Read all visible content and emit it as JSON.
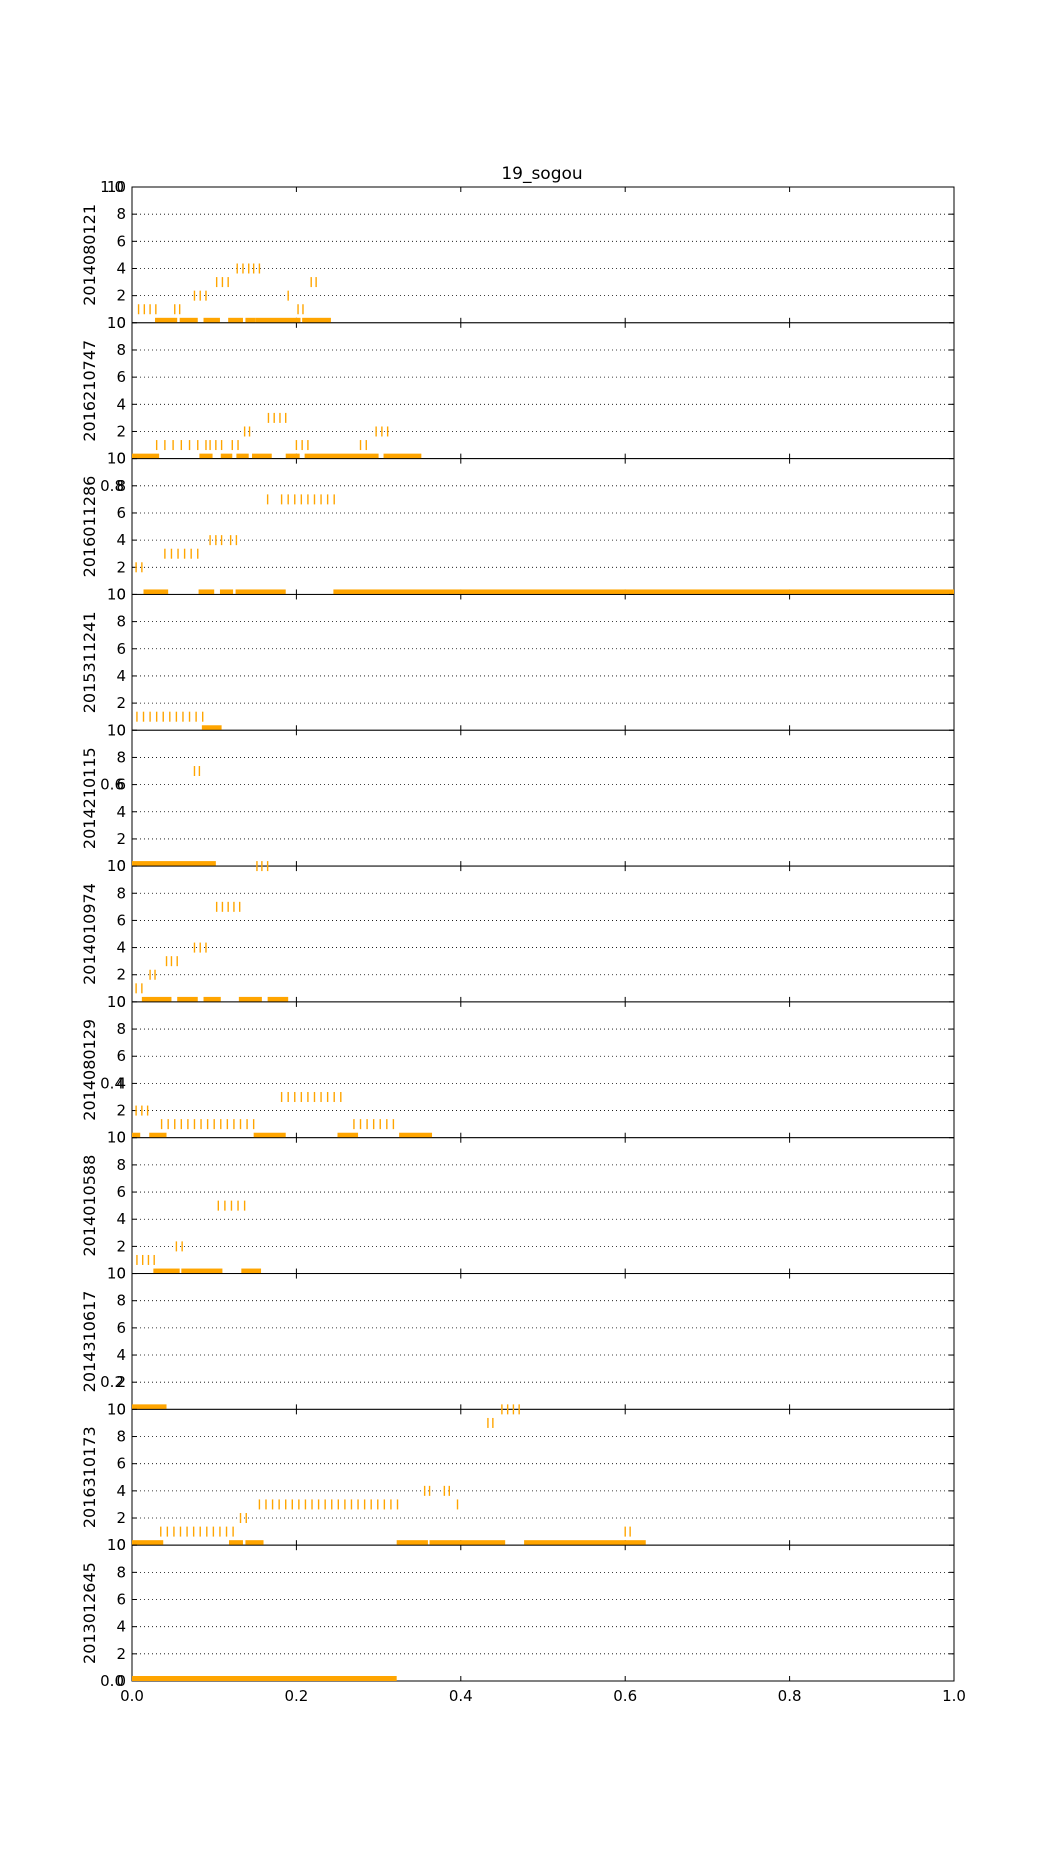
{
  "chart_data": {
    "type": "scatter",
    "title": "19_sogou",
    "mark_color": "#ffa500",
    "grid": "y-dotted",
    "xlim": [
      0,
      1.0
    ],
    "x_ticks": [
      0.0,
      0.2,
      0.4,
      0.6,
      0.8,
      1.0
    ],
    "x_tick_labels": [
      "0.0",
      "0.2",
      "0.4",
      "0.6",
      "0.8",
      "1.0"
    ],
    "ylim": [
      0,
      10
    ],
    "y_ticks": [
      0,
      2,
      4,
      6,
      8,
      10
    ],
    "y_tick_labels": [
      "0",
      "2",
      "4",
      "6",
      "8",
      "10"
    ],
    "background_ticks": [
      {
        "y": 10,
        "label": "1.0"
      },
      {
        "y": 8,
        "label": "0.8"
      },
      {
        "y": 6,
        "label": "0.6"
      },
      {
        "y": 4,
        "label": "0.4"
      },
      {
        "y": 2,
        "label": "0.2"
      },
      {
        "y": 0,
        "label": "0.0"
      }
    ],
    "panels": [
      {
        "name": "2014080121",
        "ticks": [
          {
            "y": 1,
            "x": [
              0.008,
              0.015,
              0.022,
              0.029,
              0.052,
              0.058,
              0.202,
              0.208
            ]
          },
          {
            "y": 2,
            "x": [
              0.076,
              0.083,
              0.09,
              0.19
            ]
          },
          {
            "y": 3,
            "x": [
              0.103,
              0.11,
              0.117,
              0.218,
              0.224
            ]
          },
          {
            "y": 4,
            "x": [
              0.128,
              0.135,
              0.142,
              0.148,
              0.155
            ]
          }
        ],
        "bars": [
          [
            0.028,
            0.055
          ],
          [
            0.058,
            0.08
          ],
          [
            0.087,
            0.107
          ],
          [
            0.117,
            0.135
          ],
          [
            0.138,
            0.15
          ],
          [
            0.15,
            0.205
          ],
          [
            0.207,
            0.242
          ]
        ]
      },
      {
        "name": "2016210747",
        "ticks": [
          {
            "y": 1,
            "x": [
              0.03,
              0.04,
              0.05,
              0.06,
              0.07,
              0.08,
              0.09,
              0.095,
              0.102,
              0.109,
              0.122,
              0.129,
              0.2,
              0.207,
              0.214,
              0.278,
              0.285
            ]
          },
          {
            "y": 2,
            "x": [
              0.137,
              0.143,
              0.297,
              0.304,
              0.311
            ]
          },
          {
            "y": 3,
            "x": [
              0.166,
              0.173,
              0.18,
              0.187
            ]
          }
        ],
        "bars": [
          [
            0.0,
            0.033
          ],
          [
            0.082,
            0.098
          ],
          [
            0.108,
            0.122
          ],
          [
            0.127,
            0.142
          ],
          [
            0.146,
            0.17
          ],
          [
            0.187,
            0.204
          ],
          [
            0.21,
            0.3
          ],
          [
            0.306,
            0.352
          ]
        ]
      },
      {
        "name": "2016011286",
        "ticks": [
          {
            "y": 2,
            "x": [
              0.005,
              0.012
            ]
          },
          {
            "y": 3,
            "x": [
              0.04,
              0.048,
              0.056,
              0.064,
              0.072,
              0.08
            ]
          },
          {
            "y": 4,
            "x": [
              0.095,
              0.102,
              0.109,
              0.12,
              0.127
            ]
          },
          {
            "y": 7,
            "x": [
              0.165,
              0.182,
              0.19,
              0.198,
              0.206,
              0.214,
              0.222,
              0.23,
              0.238,
              0.246
            ]
          }
        ],
        "bars": [
          [
            0.014,
            0.044
          ],
          [
            0.081,
            0.1
          ],
          [
            0.107,
            0.123
          ],
          [
            0.126,
            0.187
          ],
          [
            0.245,
            1.0
          ]
        ]
      },
      {
        "name": "2015311241",
        "ticks": [
          {
            "y": 1,
            "x": [
              0.006,
              0.014,
              0.022,
              0.03,
              0.038,
              0.046,
              0.054,
              0.062,
              0.07,
              0.078,
              0.086
            ]
          }
        ],
        "bars": [
          [
            0.085,
            0.109
          ]
        ]
      },
      {
        "name": "2014210115",
        "ticks": [
          {
            "y": 7,
            "x": [
              0.076,
              0.082
            ]
          }
        ],
        "bars": [
          [
            0.0,
            0.102
          ]
        ]
      },
      {
        "name": "2014010974",
        "ticks": [
          {
            "y": 1,
            "x": [
              0.005,
              0.012
            ]
          },
          {
            "y": 2,
            "x": [
              0.022,
              0.028
            ]
          },
          {
            "y": 3,
            "x": [
              0.042,
              0.048,
              0.055
            ]
          },
          {
            "y": 4,
            "x": [
              0.076,
              0.083,
              0.09
            ]
          },
          {
            "y": 7,
            "x": [
              0.103,
              0.11,
              0.117,
              0.124,
              0.131
            ]
          },
          {
            "y": 10,
            "x": [
              0.152,
              0.158,
              0.165
            ]
          }
        ],
        "bars": [
          [
            0.012,
            0.048
          ],
          [
            0.055,
            0.08
          ],
          [
            0.087,
            0.108
          ],
          [
            0.13,
            0.158
          ],
          [
            0.165,
            0.19
          ]
        ]
      },
      {
        "name": "2014080129",
        "ticks": [
          {
            "y": 1,
            "x": [
              0.036,
              0.044,
              0.052,
              0.06,
              0.068,
              0.076,
              0.084,
              0.092,
              0.1,
              0.108,
              0.116,
              0.124,
              0.132,
              0.14,
              0.148,
              0.27,
              0.278,
              0.286,
              0.294,
              0.302,
              0.31,
              0.318
            ]
          },
          {
            "y": 2,
            "x": [
              0.005,
              0.012,
              0.019
            ]
          },
          {
            "y": 3,
            "x": [
              0.182,
              0.19,
              0.198,
              0.206,
              0.214,
              0.222,
              0.23,
              0.238,
              0.246,
              0.254
            ]
          }
        ],
        "bars": [
          [
            0.0,
            0.01
          ],
          [
            0.021,
            0.042
          ],
          [
            0.148,
            0.187
          ],
          [
            0.25,
            0.275
          ],
          [
            0.325,
            0.365
          ]
        ]
      },
      {
        "name": "2014010588",
        "ticks": [
          {
            "y": 1,
            "x": [
              0.006,
              0.013,
              0.02,
              0.027
            ]
          },
          {
            "y": 2,
            "x": [
              0.054,
              0.061
            ]
          },
          {
            "y": 5,
            "x": [
              0.105,
              0.113,
              0.121,
              0.129,
              0.137
            ]
          }
        ],
        "bars": [
          [
            0.026,
            0.058
          ],
          [
            0.06,
            0.11
          ],
          [
            0.133,
            0.157
          ]
        ]
      },
      {
        "name": "2014310617",
        "ticks": [],
        "bars": [
          [
            0.0,
            0.042
          ]
        ]
      },
      {
        "name": "2016310173",
        "ticks": [
          {
            "y": 1,
            "x": [
              0.035,
              0.043,
              0.051,
              0.059,
              0.067,
              0.075,
              0.083,
              0.091,
              0.099,
              0.107,
              0.115,
              0.123,
              0.6,
              0.606
            ]
          },
          {
            "y": 2,
            "x": [
              0.132,
              0.139
            ]
          },
          {
            "y": 3,
            "x": [
              0.155,
              0.163,
              0.171,
              0.179,
              0.187,
              0.195,
              0.203,
              0.211,
              0.219,
              0.227,
              0.235,
              0.243,
              0.251,
              0.259,
              0.267,
              0.275,
              0.283,
              0.291,
              0.299,
              0.307,
              0.315,
              0.323,
              0.396
            ]
          },
          {
            "y": 4,
            "x": [
              0.356,
              0.362,
              0.38,
              0.386
            ]
          },
          {
            "y": 9,
            "x": [
              0.433,
              0.439
            ]
          },
          {
            "y": 10,
            "x": [
              0.45,
              0.457,
              0.464,
              0.471
            ]
          }
        ],
        "bars": [
          [
            0.0,
            0.038
          ],
          [
            0.118,
            0.135
          ],
          [
            0.138,
            0.16
          ],
          [
            0.322,
            0.36
          ],
          [
            0.362,
            0.454
          ],
          [
            0.477,
            0.625
          ]
        ]
      },
      {
        "name": "2013012645",
        "ticks": [],
        "bars": [
          [
            0.0,
            0.322
          ]
        ]
      }
    ]
  }
}
